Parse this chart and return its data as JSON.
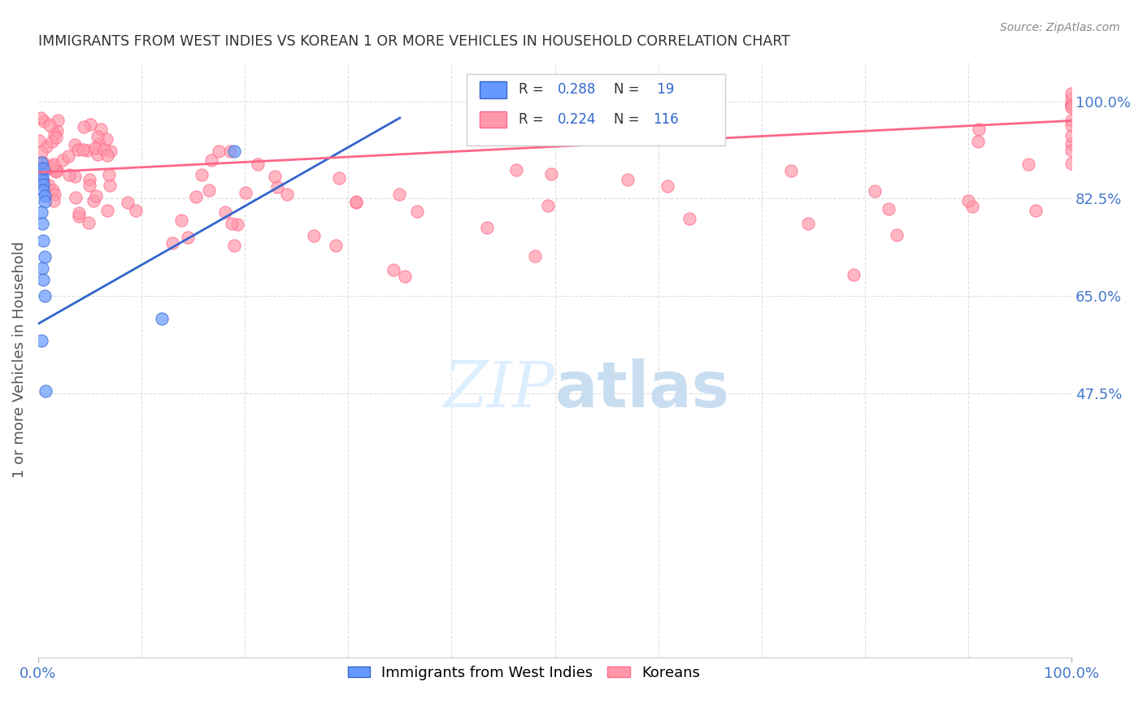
{
  "title": "IMMIGRANTS FROM WEST INDIES VS KOREAN 1 OR MORE VEHICLES IN HOUSEHOLD CORRELATION CHART",
  "source": "Source: ZipAtlas.com",
  "ylabel": "1 or more Vehicles in Household",
  "legend_label1": "Immigrants from West Indies",
  "legend_label2": "Koreans",
  "R1": 0.288,
  "N1": 19,
  "R2": 0.224,
  "N2": 116,
  "color_blue": "#6699FF",
  "color_pink": "#FF99AA",
  "color_blue_dark": "#3366CC",
  "color_pink_dark": "#FF6688",
  "title_color": "#333333",
  "source_color": "#888888",
  "axis_label_color": "#4477CC",
  "grid_color": "#DDDDDD"
}
